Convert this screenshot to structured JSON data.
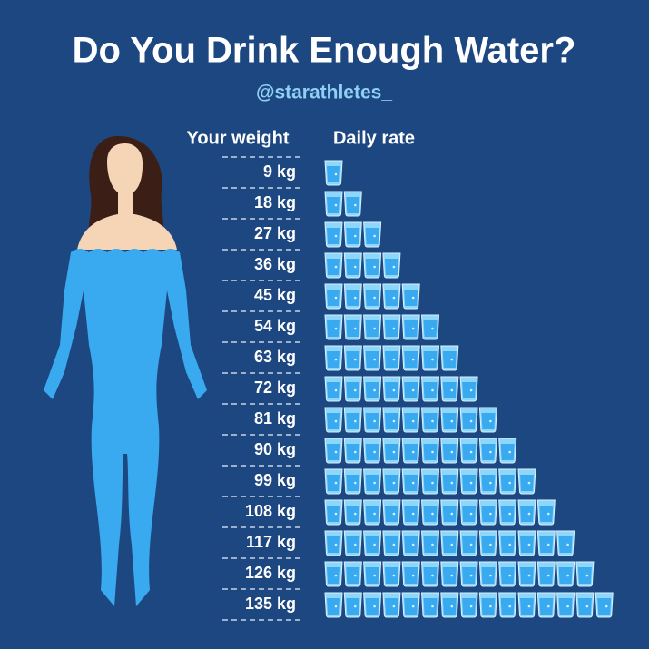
{
  "chart_data": {
    "type": "pictograph",
    "title": "Do You Drink Enough Water?",
    "subtitle": "@starathletes_",
    "category_axis_label": "Your weight",
    "value_axis_label": "Daily rate",
    "categories": [
      "9 kg",
      "18 kg",
      "27 kg",
      "36 kg",
      "45 kg",
      "54 kg",
      "63 kg",
      "72 kg",
      "81 kg",
      "90 kg",
      "99 kg",
      "108 kg",
      "117 kg",
      "126 kg",
      "135 kg"
    ],
    "values": [
      1,
      2,
      3,
      4,
      5,
      6,
      7,
      8,
      9,
      10,
      11,
      12,
      13,
      14,
      15
    ],
    "color": "#3aaaf0"
  }
}
